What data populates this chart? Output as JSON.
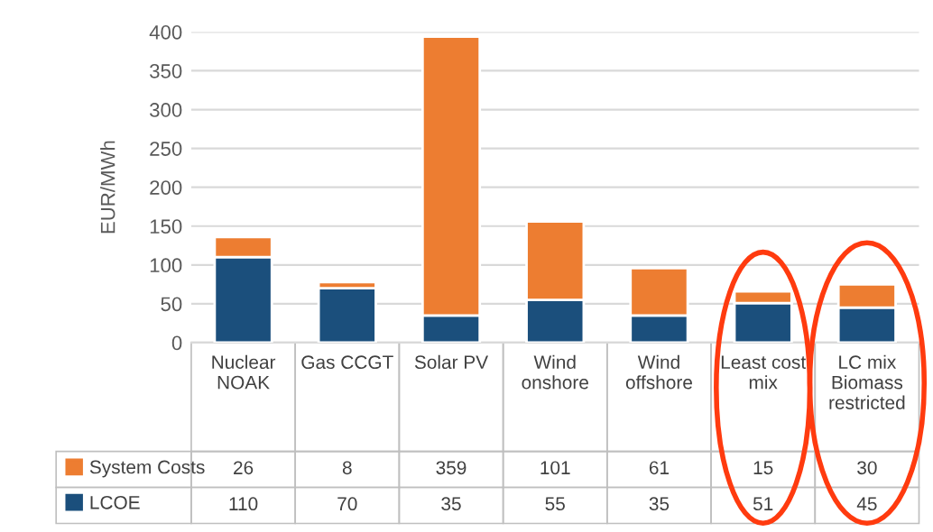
{
  "chart_data": {
    "type": "bar",
    "stacked": true,
    "ylabel": "EUR/MWh",
    "categories": [
      "Nuclear\nNOAK",
      "Gas CCGT",
      "Solar PV",
      "Wind\nonshore",
      "Wind\noffshore",
      "Least cost\nmix",
      "LC mix\nBiomass\nrestricted"
    ],
    "series": [
      {
        "name": "LCOE",
        "color": "#1b4f7c",
        "values": [
          110,
          70,
          35,
          55,
          35,
          51,
          45
        ]
      },
      {
        "name": "System Costs",
        "color": "#ed7d31",
        "values": [
          26,
          8,
          359,
          101,
          61,
          15,
          30
        ]
      }
    ],
    "ylim": [
      0,
      400
    ],
    "yticks": [
      0,
      50,
      100,
      150,
      200,
      250,
      300,
      350,
      400
    ],
    "grid": "y",
    "data_labels": true,
    "legend": "bottom left"
  }
}
